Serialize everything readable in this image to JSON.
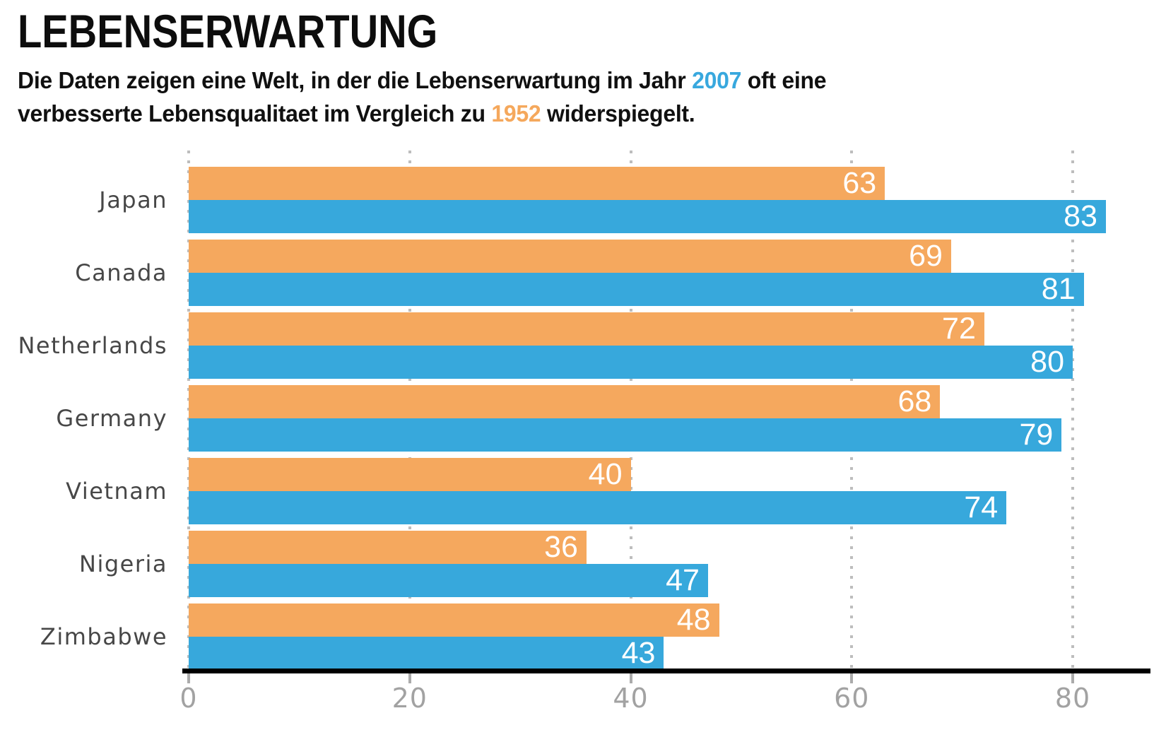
{
  "page": {
    "background": "#ffffff"
  },
  "header": {
    "title": "LEBENSERWARTUNG",
    "subtitle": {
      "line1_pre": "Die Daten zeigen eine Welt, in der die Lebenserwartung im Jahr ",
      "year_2007": "2007",
      "line1_post": " oft eine",
      "line2_pre": "verbesserte Lebensqualitaet im Vergleich zu ",
      "year_1952": "1952",
      "line2_post": " widerspiegelt."
    }
  },
  "chart_data": {
    "type": "bar",
    "orientation": "horizontal",
    "title": "LEBENSERWARTUNG",
    "categories": [
      "Japan",
      "Canada",
      "Netherlands",
      "Germany",
      "Vietnam",
      "Nigeria",
      "Zimbabwe"
    ],
    "series": [
      {
        "name": "1952",
        "color": "#F5A85E",
        "values": [
          63,
          69,
          72,
          68,
          40,
          36,
          48
        ]
      },
      {
        "name": "2007",
        "color": "#37A8DC",
        "values": [
          83,
          81,
          80,
          79,
          74,
          47,
          43
        ]
      }
    ],
    "xlabel": "",
    "ylabel": "",
    "xlim": [
      0,
      87
    ],
    "xticks": [
      0,
      20,
      40,
      60,
      80
    ],
    "grid": "dotted-vertical-behind-bars",
    "value_labels": "inside-end-white",
    "legend": "none (years colored in subtitle text)"
  },
  "colors": {
    "accent_2007": "#37A8DC",
    "accent_1952": "#F5A85E",
    "title_text": "#0D0D0D",
    "subtitle_text": "#101010",
    "category_label": "#474747",
    "tick_label": "#A2A2A2",
    "gridline": "#BDBDBD",
    "axis_line": "#000000",
    "bar_value_label": "#FFFFFF"
  }
}
